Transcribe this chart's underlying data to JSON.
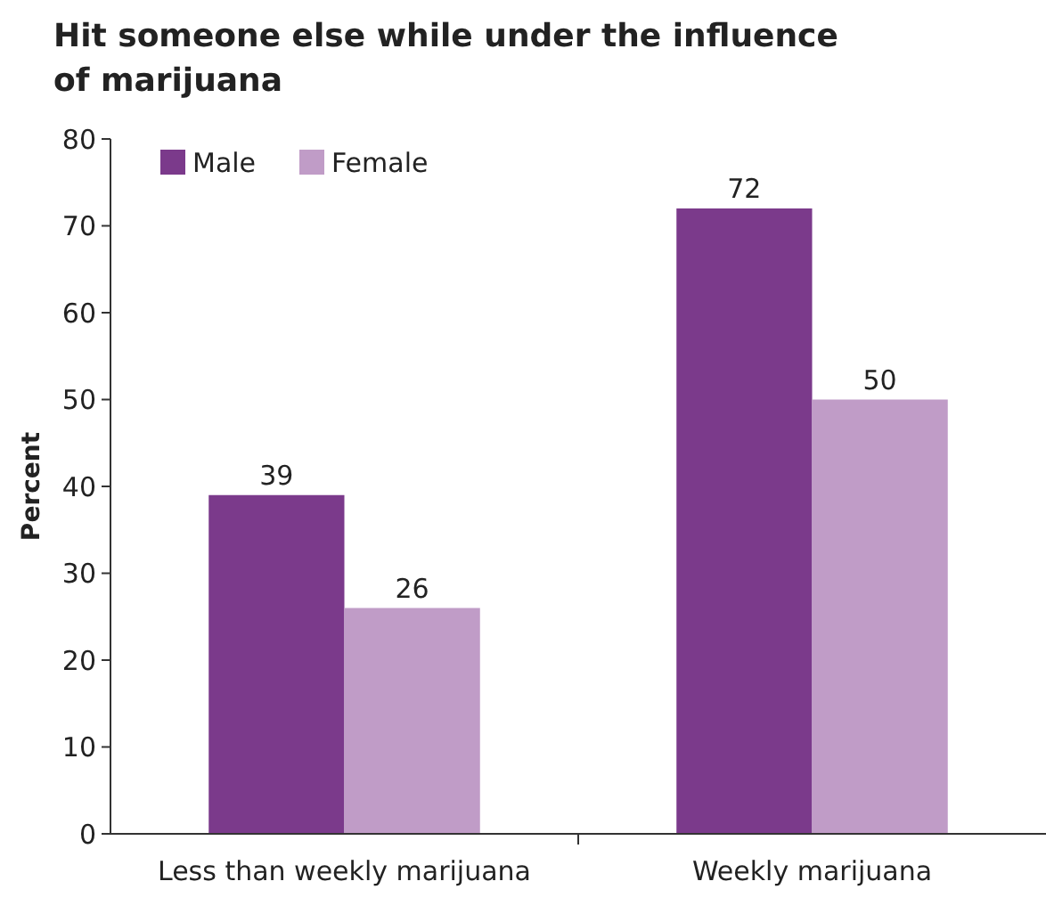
{
  "chart_data": {
    "type": "bar",
    "title": "Hit someone else while under the influence of marijuana",
    "ylabel": "Percent",
    "categories": [
      "Less than weekly marijuana",
      "Weekly marijuana"
    ],
    "series": [
      {
        "name": "Male",
        "color": "#7b3a8b",
        "values": [
          39,
          72
        ]
      },
      {
        "name": "Female",
        "color": "#c09cc7",
        "values": [
          26,
          50
        ]
      }
    ],
    "ylim": [
      0,
      80
    ],
    "yticks": [
      0,
      10,
      20,
      30,
      40,
      50,
      60,
      70,
      80
    ],
    "data_labels": true,
    "legend": "top left",
    "grid": false
  }
}
